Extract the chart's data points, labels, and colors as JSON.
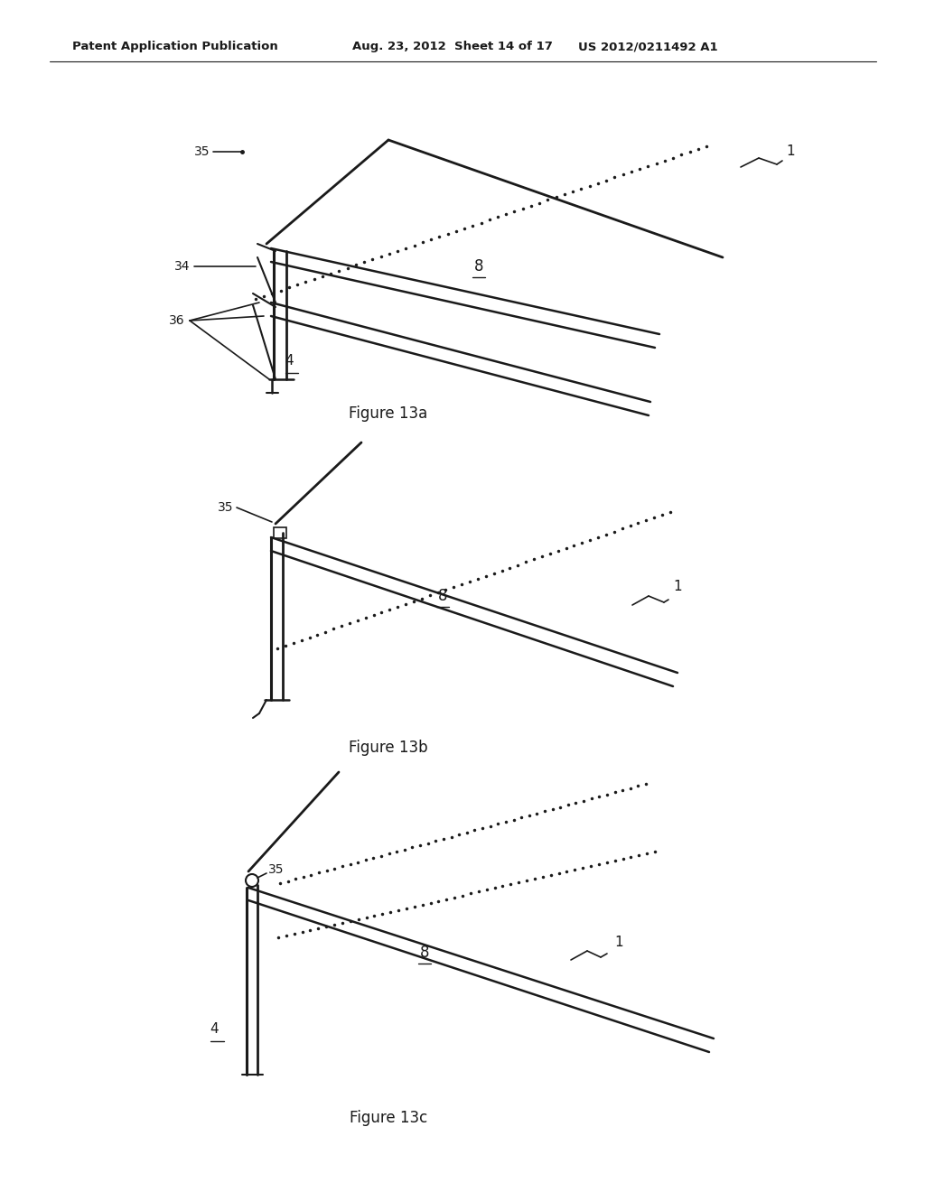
{
  "bg_color": "#ffffff",
  "line_color": "#1a1a1a",
  "header_left": "Patent Application Publication",
  "header_mid": "Aug. 23, 2012  Sheet 14 of 17",
  "header_right": "US 2012/0211492 A1",
  "fig13a_caption": "Figure 13a",
  "fig13b_caption": "Figure 13b",
  "fig13c_caption": "Figure 13c"
}
